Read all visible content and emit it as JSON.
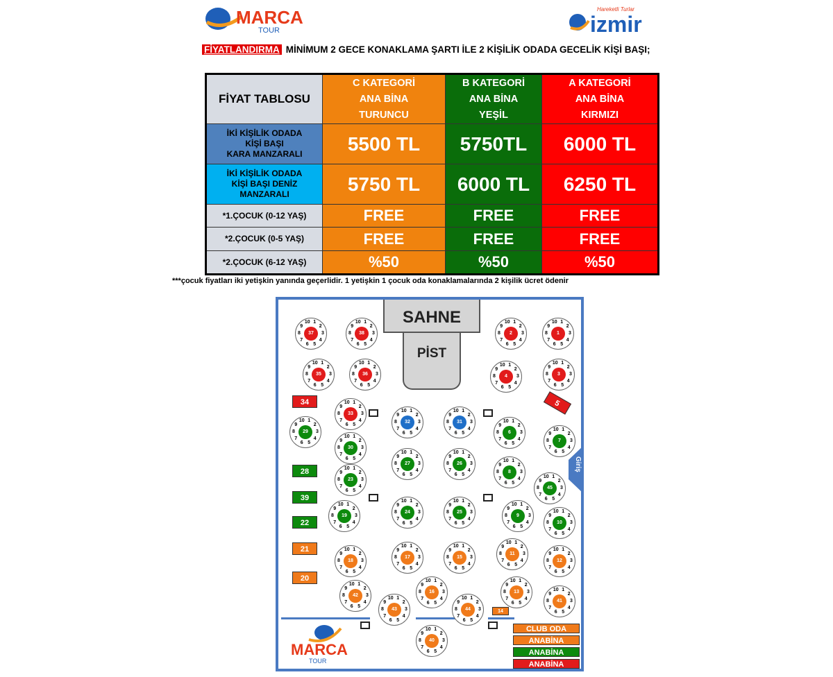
{
  "logos": {
    "marca_text": "MARCA",
    "tour_text": "TOUR",
    "izmir_text": "izmir",
    "izmir_tag": "Hareketli Turlar"
  },
  "intro": {
    "badge": "FİYATLANDIRMA",
    "text": "MİNİMUM 2 GECE KONAKLAMA ŞARTI İLE 2 KİŞİLİK ODADA GECELİK KİŞİ BAŞI;"
  },
  "table": {
    "title": "FİYAT TABLOSU",
    "columns": [
      {
        "line1": "C KATEGORİ",
        "line2": "ANA BİNA",
        "line3": "TURUNCU"
      },
      {
        "line1": "B KATEGORİ",
        "line2": "ANA BİNA",
        "line3": "YEŞİL"
      },
      {
        "line1": "A KATEGORİ",
        "line2": "ANA BİNA",
        "line3": "KIRMIZI"
      }
    ],
    "rows": [
      {
        "label1": "İKİ KİŞİLİK ODADA",
        "label2": "KİŞİ BAŞI",
        "label3": "KARA MANZARALI",
        "values": [
          "5500 TL",
          "5750TL",
          "6000 TL"
        ]
      },
      {
        "label1": "İKİ KİŞİLİK ODADA",
        "label2": "KİŞİ BAŞI DENİZ",
        "label3": "MANZARALI",
        "values": [
          "5750 TL",
          "6000 TL",
          "6250 TL"
        ]
      },
      {
        "label1": "*1.ÇOCUK (0-12 YAŞ)",
        "values": [
          "FREE",
          "FREE",
          "FREE"
        ]
      },
      {
        "label1": "*2.ÇOCUK (0-5 YAŞ)",
        "values": [
          "FREE",
          "FREE",
          "FREE"
        ]
      },
      {
        "label1": "*2.ÇOCUK (6-12 YAŞ)",
        "values": [
          "%50",
          "%50",
          "%50"
        ]
      }
    ]
  },
  "footnote": "***çocuk fiyatları iki yetişkin yanında geçerlidir. 1 yetişkin 1 çocuk oda konaklamalarında 2 kişilik ücret ödenir",
  "plan": {
    "stage": "SAHNE",
    "pist": "PİST",
    "entry": "Giriş",
    "legend": [
      "CLUB ODA",
      "ANABİNA",
      "ANABİNA",
      "ANABİNA"
    ],
    "colors": {
      "red": "#e21b1b",
      "green": "#0d8a0d",
      "orange": "#f07a1a",
      "blue": "#1f6fc8"
    }
  }
}
